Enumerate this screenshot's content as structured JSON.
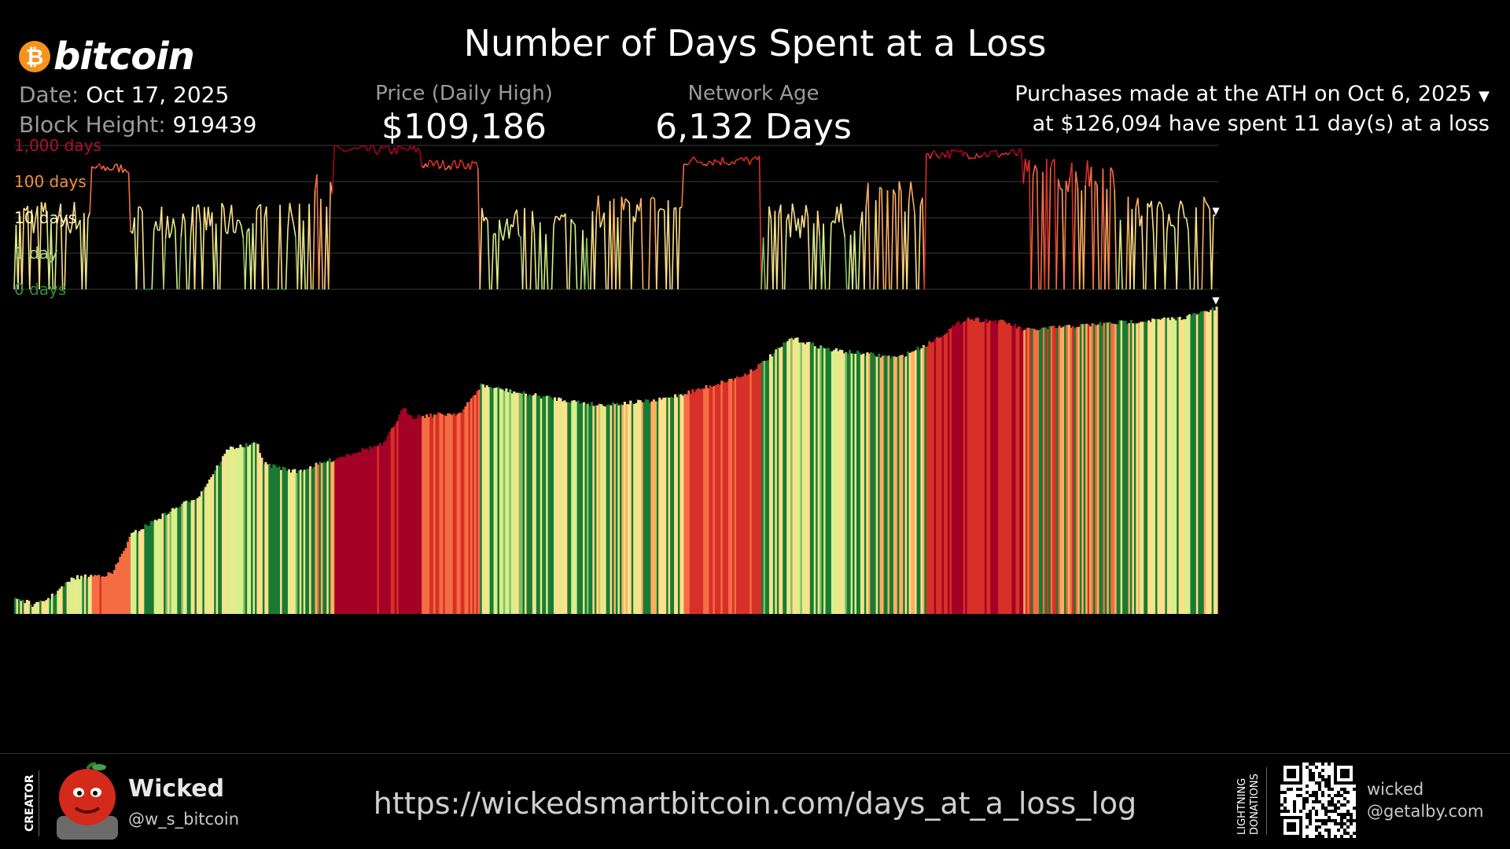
{
  "header": {
    "logo_text": "bitcoin",
    "logo_symbol": "₿",
    "title": "Number of Days Spent at a Loss",
    "date_label": "Date:",
    "date_value": "Oct 17, 2025",
    "block_label": "Block Height:",
    "block_value": "919439",
    "price_label": "Price (Daily High)",
    "price_value": "$109,186",
    "age_label": "Network Age",
    "age_value": "6,132 Days",
    "ath_line1": "Purchases made at the ATH on Oct 6, 2025",
    "ath_line2": "at $126,094 have spent 11 day(s) at a loss",
    "marker": "▼"
  },
  "chart_data": {
    "type": "line",
    "scale": "log",
    "y_ticks": [
      "1,000 days",
      "100 days",
      "10 days",
      "1 day",
      "0 days"
    ],
    "y_tick_values": [
      1000,
      100,
      10,
      1,
      0
    ],
    "tick_colors": [
      "#b01030",
      "#f5903a",
      "#fff4c0",
      "#a8d878",
      "#2e8b3e"
    ],
    "grid": true,
    "lower_panel": "cumulative price colored by days at a loss",
    "current_days_at_loss": 11
  },
  "footer": {
    "creator_label": "CREATOR",
    "creator_name": "Wicked",
    "creator_handle": "@w_s_bitcoin",
    "url": "https://wickedsmartbitcoin.com/days_at_a_loss_log",
    "donation_label_1": "LIGHTNING",
    "donation_label_2": "DONATIONS",
    "lightning_name": "wicked",
    "lightning_domain": "@getalby.com"
  },
  "colors": {
    "background": "#000000",
    "red_dark": "#a50026",
    "orange": "#f46d43",
    "yellow": "#fee08b",
    "green": "#1a9850"
  }
}
